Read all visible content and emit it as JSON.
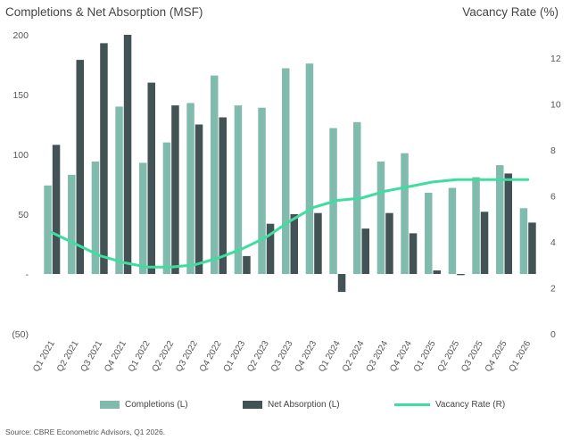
{
  "chart_data": {
    "type": "bar",
    "title_left": "Completions & Net Absorption (MSF)",
    "title_right": "Vacancy Rate (%)",
    "categories": [
      "Q1 2021",
      "Q2 2021",
      "Q3 2021",
      "Q4 2021",
      "Q1 2022",
      "Q2 2022",
      "Q3 2022",
      "Q4 2022",
      "Q1 2023",
      "Q2 2023",
      "Q3 2023",
      "Q4 2023",
      "Q1 2024",
      "Q2 2024",
      "Q3 2024",
      "Q4 2024",
      "Q1 2025",
      "Q2 2025",
      "Q3 2025",
      "Q4 2025",
      "Q1 2026"
    ],
    "series": [
      {
        "name": "Completions (L)",
        "type": "bar",
        "axis": "left",
        "color": "#80BBAD",
        "values": [
          74,
          83,
          94,
          140,
          93,
          110,
          143,
          166,
          141,
          139,
          172,
          176,
          122,
          127,
          94,
          101,
          68,
          72,
          81,
          91,
          55
        ]
      },
      {
        "name": "Net Absorption (L)",
        "type": "bar",
        "axis": "left",
        "color": "#435254",
        "values": [
          108,
          179,
          193,
          200,
          160,
          141,
          125,
          131,
          15,
          42,
          50,
          51,
          -15,
          38,
          51,
          34,
          3,
          -1,
          52,
          84,
          43
        ]
      },
      {
        "name": "Vacancy Rate (R)",
        "type": "line",
        "axis": "right",
        "color": "#3FDDA0",
        "values": [
          4.4,
          3.9,
          3.4,
          3.1,
          2.9,
          2.9,
          3.0,
          3.3,
          3.7,
          4.2,
          4.9,
          5.5,
          5.8,
          5.9,
          6.2,
          6.4,
          6.6,
          6.7,
          6.7,
          6.7,
          6.7
        ]
      }
    ],
    "left_axis": {
      "ylim": [
        -50,
        200
      ],
      "ticks": [
        -50,
        0,
        50,
        100,
        150,
        200
      ],
      "tick_labels": [
        "(50)",
        "-",
        "50",
        "100",
        "150",
        "200"
      ]
    },
    "right_axis": {
      "ylim": [
        0,
        13
      ],
      "ticks": [
        0,
        2,
        4,
        6,
        8,
        10,
        12
      ],
      "tick_labels": [
        "0",
        "2",
        "4",
        "6",
        "8",
        "10",
        "12"
      ]
    },
    "legend_position": "bottom",
    "grid": false
  },
  "source": "Source: CBRE Econometric Advisors, Q1 2026."
}
